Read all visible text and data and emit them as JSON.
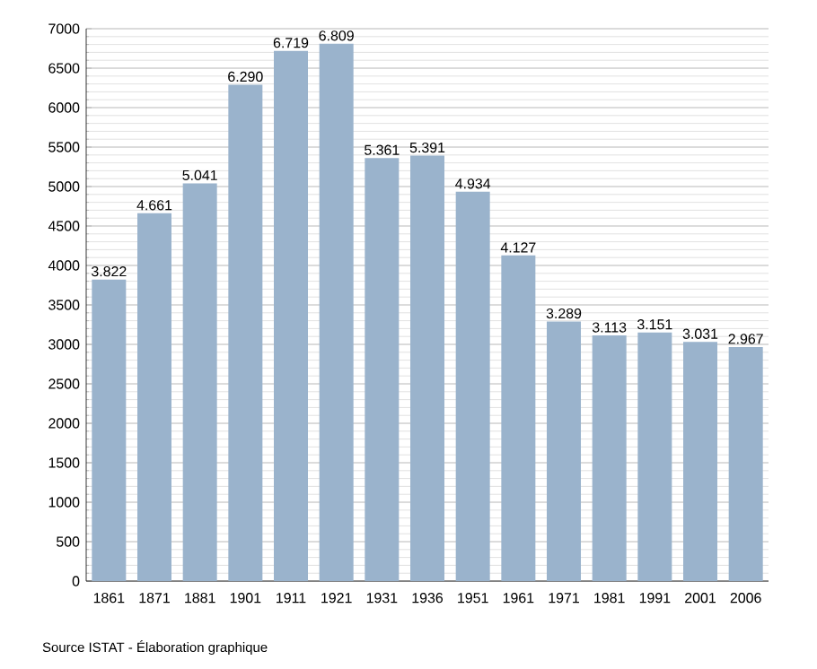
{
  "chart_data": {
    "type": "bar",
    "categories": [
      "1861",
      "1871",
      "1881",
      "1901",
      "1911",
      "1921",
      "1931",
      "1936",
      "1951",
      "1961",
      "1971",
      "1981",
      "1991",
      "2001",
      "2006"
    ],
    "values": [
      3822,
      4661,
      5041,
      6290,
      6719,
      6809,
      5361,
      5391,
      4934,
      4127,
      3289,
      3113,
      3151,
      3031,
      2967
    ],
    "value_labels": [
      "3.822",
      "4.661",
      "5.041",
      "6.290",
      "6.719",
      "6.809",
      "5.361",
      "5.391",
      "4.934",
      "4.127",
      "3.289",
      "3.113",
      "3.151",
      "3.031",
      "2.967"
    ],
    "color": "#9ab3cc",
    "ylim": [
      0,
      7000
    ],
    "yticks": [
      0,
      500,
      1000,
      1500,
      2000,
      2500,
      3000,
      3500,
      4000,
      4500,
      5000,
      5500,
      6000,
      6500,
      7000
    ],
    "grid": "y",
    "annotations": [
      "Source ISTAT - Élaboration graphique"
    ]
  }
}
